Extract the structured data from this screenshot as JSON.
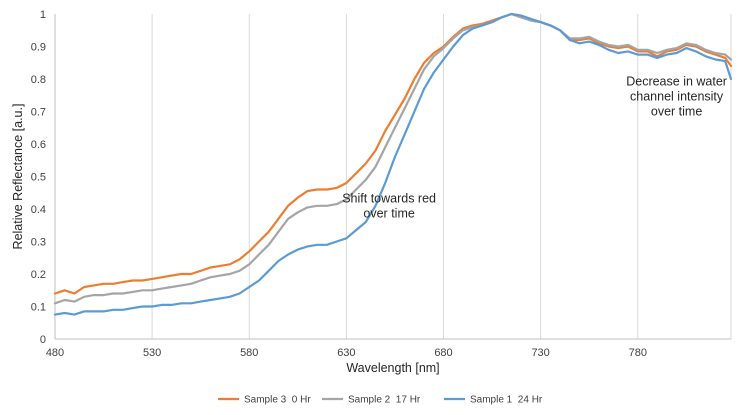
{
  "chart_data": {
    "type": "line",
    "xlabel": "Wavelength [nm]",
    "ylabel": "Relative Reflectance [a.u.]",
    "xlim": [
      480,
      828
    ],
    "ylim": [
      0,
      1
    ],
    "x_ticks": [
      "480",
      "530",
      "580",
      "630",
      "680",
      "730",
      "780"
    ],
    "y_ticks": [
      "0",
      "0.1",
      "0.2",
      "0.3",
      "0.4",
      "0.5",
      "0.6",
      "0.7",
      "0.8",
      "0.9",
      "1"
    ],
    "grid": "vertical",
    "legend_position": "bottom",
    "colors": {
      "sample3": "#ED7D31",
      "sample2": "#A5A5A5",
      "sample1": "#5B9BD5"
    },
    "x": [
      480,
      485,
      490,
      495,
      500,
      505,
      510,
      515,
      520,
      525,
      530,
      535,
      540,
      545,
      550,
      555,
      560,
      565,
      570,
      575,
      580,
      585,
      590,
      595,
      600,
      605,
      610,
      615,
      620,
      625,
      630,
      635,
      640,
      645,
      650,
      655,
      660,
      665,
      670,
      675,
      680,
      685,
      690,
      695,
      700,
      705,
      710,
      715,
      720,
      725,
      730,
      735,
      740,
      745,
      750,
      755,
      760,
      765,
      770,
      775,
      780,
      785,
      790,
      795,
      800,
      805,
      810,
      815,
      820,
      825,
      828
    ],
    "series": [
      {
        "name": "Sample 3  0 Hr",
        "color": "#ED7D31",
        "values": [
          0.14,
          0.15,
          0.14,
          0.16,
          0.165,
          0.17,
          0.17,
          0.175,
          0.18,
          0.18,
          0.185,
          0.19,
          0.195,
          0.2,
          0.2,
          0.21,
          0.22,
          0.225,
          0.23,
          0.245,
          0.27,
          0.3,
          0.33,
          0.37,
          0.41,
          0.435,
          0.455,
          0.46,
          0.46,
          0.465,
          0.48,
          0.51,
          0.54,
          0.58,
          0.64,
          0.69,
          0.74,
          0.8,
          0.85,
          0.88,
          0.9,
          0.93,
          0.955,
          0.965,
          0.97,
          0.98,
          0.99,
          1.0,
          0.99,
          0.98,
          0.975,
          0.965,
          0.95,
          0.92,
          0.92,
          0.925,
          0.91,
          0.9,
          0.895,
          0.9,
          0.885,
          0.885,
          0.87,
          0.885,
          0.89,
          0.905,
          0.9,
          0.885,
          0.875,
          0.865,
          0.84
        ]
      },
      {
        "name": "Sample 2  17 Hr",
        "color": "#A5A5A5",
        "values": [
          0.11,
          0.12,
          0.115,
          0.13,
          0.135,
          0.135,
          0.14,
          0.14,
          0.145,
          0.15,
          0.15,
          0.155,
          0.16,
          0.165,
          0.17,
          0.18,
          0.19,
          0.195,
          0.2,
          0.21,
          0.23,
          0.26,
          0.29,
          0.33,
          0.37,
          0.39,
          0.405,
          0.41,
          0.41,
          0.415,
          0.43,
          0.46,
          0.49,
          0.53,
          0.59,
          0.65,
          0.71,
          0.77,
          0.83,
          0.87,
          0.895,
          0.925,
          0.95,
          0.96,
          0.965,
          0.975,
          0.99,
          1.0,
          0.99,
          0.98,
          0.975,
          0.965,
          0.95,
          0.925,
          0.925,
          0.93,
          0.915,
          0.905,
          0.9,
          0.905,
          0.89,
          0.89,
          0.88,
          0.89,
          0.895,
          0.91,
          0.905,
          0.89,
          0.88,
          0.875,
          0.86
        ]
      },
      {
        "name": "Sample 1  24 Hr",
        "color": "#5B9BD5",
        "values": [
          0.075,
          0.08,
          0.075,
          0.085,
          0.085,
          0.085,
          0.09,
          0.09,
          0.095,
          0.1,
          0.1,
          0.105,
          0.105,
          0.11,
          0.11,
          0.115,
          0.12,
          0.125,
          0.13,
          0.14,
          0.16,
          0.18,
          0.21,
          0.24,
          0.26,
          0.275,
          0.285,
          0.29,
          0.29,
          0.3,
          0.31,
          0.335,
          0.36,
          0.41,
          0.48,
          0.56,
          0.63,
          0.7,
          0.77,
          0.82,
          0.86,
          0.9,
          0.935,
          0.955,
          0.965,
          0.975,
          0.99,
          1.0,
          0.995,
          0.985,
          0.975,
          0.965,
          0.95,
          0.92,
          0.91,
          0.915,
          0.905,
          0.89,
          0.88,
          0.885,
          0.875,
          0.875,
          0.865,
          0.875,
          0.88,
          0.895,
          0.885,
          0.87,
          0.86,
          0.855,
          0.8
        ]
      }
    ],
    "annotations": [
      {
        "text": [
          "Shift towards red",
          "over time"
        ],
        "x": 652,
        "y": 0.42
      },
      {
        "text": [
          "Decrease in water",
          "channel intensity",
          "over time"
        ],
        "x": 800,
        "y": 0.78
      }
    ]
  }
}
